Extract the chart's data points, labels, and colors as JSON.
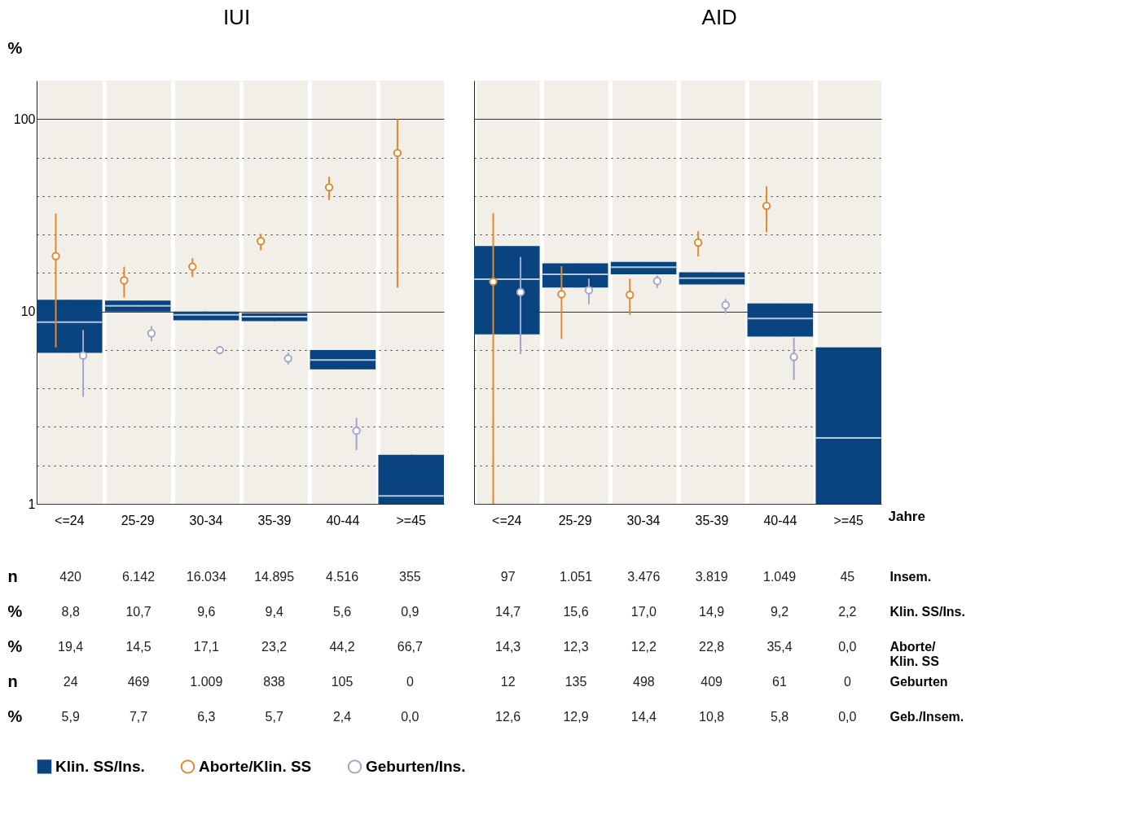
{
  "chart_data": [
    {
      "type": "box",
      "title": "IUI",
      "ylabel": "%",
      "categories": [
        "<=24",
        "25-29",
        "30-34",
        "35-39",
        "40-44",
        ">=45"
      ],
      "log": true,
      "grid": true,
      "legend": "bottom",
      "marker": "circle",
      "ylim": [
        1,
        158.5
      ],
      "yticks": [
        1,
        {
          "value": 1.585,
          "label": null
        },
        {
          "value": 2.512,
          "label": null
        },
        {
          "value": 3.981,
          "label": null
        },
        {
          "value": 6.31,
          "label": null
        },
        10,
        {
          "value": 15.85,
          "label": null
        },
        {
          "value": 25.12,
          "label": null
        },
        {
          "value": 39.81,
          "label": null
        },
        {
          "value": 63.1,
          "label": null
        },
        100
      ],
      "series": [
        {
          "name": "Klin. SS/Ins.",
          "color": "#0a4480",
          "boxes": [
            {
              "low": 6.1,
              "q1": 6.1,
              "median": 8.8,
              "q3": 11.5,
              "high": 11.5
            },
            {
              "low": 10.0,
              "q1": 10.0,
              "median": 10.7,
              "q3": 11.4,
              "high": 11.4
            },
            {
              "low": 9.0,
              "q1": 9.0,
              "median": 9.6,
              "q3": 10.0,
              "high": 10.0
            },
            {
              "low": 8.9,
              "q1": 8.9,
              "median": 9.4,
              "q3": 9.8,
              "high": 9.8
            },
            {
              "low": 5.0,
              "q1": 5.0,
              "median": 5.6,
              "q3": 6.3,
              "high": 6.3
            },
            {
              "low": 1,
              "q1": 1,
              "median": 1.1,
              "q3": 1.8,
              "high": 1.8
            }
          ]
        },
        {
          "name": "Aborte/Klin. SS",
          "type": "scatter",
          "color": "#e08a2e",
          "values": [
            19.4,
            14.5,
            17.1,
            23.2,
            44.2,
            66.7
          ],
          "errors": [
            [
              6.5,
              32.3
            ],
            [
              11.8,
              17.1
            ],
            [
              15.1,
              18.9
            ],
            [
              20.8,
              25.3
            ],
            [
              37.9,
              50.2
            ],
            [
              13.3,
              100
            ]
          ]
        },
        {
          "name": "Geburten/Ins.",
          "type": "scatter",
          "color": "#a3a6cc",
          "values": [
            5.9,
            7.7,
            6.3,
            5.7,
            2.4,
            null
          ],
          "errors": [
            [
              3.6,
              8.0
            ],
            [
              7.0,
              8.4
            ],
            [
              6.0,
              6.6
            ],
            [
              5.3,
              6.1
            ],
            [
              1.9,
              2.8
            ],
            null
          ]
        }
      ],
      "annotations": [
        "n",
        "%",
        "%",
        "n",
        "%",
        "420",
        "6.142",
        "16.034",
        "14.895",
        "4.516",
        "355",
        "8,8",
        "10,7",
        "9,6",
        "9,4",
        "5,6",
        "0,9",
        "19,4",
        "14,5",
        "17,1",
        "23,2",
        "44,2",
        "66,7",
        "24",
        "469",
        "1.009",
        "838",
        "105",
        "0",
        "5,9",
        "7,7",
        "6,3",
        "5,7",
        "2,4",
        "0,0"
      ]
    },
    {
      "type": "box",
      "title": "AID",
      "xlabel": "Jahre",
      "categories": [
        "<=24",
        "25-29",
        "30-34",
        "35-39",
        "40-44",
        ">=45"
      ],
      "log": true,
      "grid": true,
      "tick_labels": "x",
      "marker": "circle",
      "ylim": [
        1,
        158.5
      ],
      "yticks": [
        1,
        {
          "value": 1.585,
          "label": null
        },
        {
          "value": 2.512,
          "label": null
        },
        {
          "value": 3.981,
          "label": null
        },
        {
          "value": 6.31,
          "label": null
        },
        10,
        {
          "value": 15.85,
          "label": null
        },
        {
          "value": 25.12,
          "label": null
        },
        {
          "value": 39.81,
          "label": null
        },
        {
          "value": 63.1,
          "label": null
        },
        100
      ],
      "series": [
        {
          "color": "#0a4480",
          "boxes": [
            {
              "low": 7.6,
              "q1": 7.6,
              "median": 14.7,
              "q3": 21.9,
              "high": 21.9
            },
            {
              "low": 13.3,
              "q1": 13.3,
              "median": 15.6,
              "q3": 17.8,
              "high": 17.8
            },
            {
              "low": 15.6,
              "q1": 15.6,
              "median": 17.0,
              "q3": 18.1,
              "high": 18.1
            },
            {
              "low": 13.8,
              "q1": 13.8,
              "median": 14.9,
              "q3": 16.0,
              "high": 16.0
            },
            {
              "low": 7.4,
              "q1": 7.4,
              "median": 9.2,
              "q3": 11.0,
              "high": 11.0
            },
            {
              "low": 1,
              "q1": 1,
              "median": 2.2,
              "q3": 6.5,
              "high": 6.5
            }
          ]
        },
        {
          "type": "scatter",
          "color": "#e08a2e",
          "values": [
            14.3,
            12.3,
            12.2,
            22.8,
            35.4,
            null
          ],
          "errors": [
            [
              1,
              32.5
            ],
            [
              7.2,
              17.2
            ],
            [
              9.6,
              14.8
            ],
            [
              19.3,
              26.1
            ],
            [
              25.8,
              44.8
            ],
            null
          ]
        },
        {
          "type": "scatter",
          "color": "#a3a6cc",
          "values": [
            12.6,
            12.9,
            14.4,
            10.8,
            5.8,
            null
          ],
          "errors": [
            [
              6.0,
              19.2
            ],
            [
              10.9,
              14.8
            ],
            [
              13.2,
              15.4
            ],
            [
              9.8,
              11.6
            ],
            [
              4.4,
              7.3
            ],
            null
          ]
        }
      ],
      "annotations": [
        "Insem.",
        "Klin. SS/Ins.",
        "Aborte/ Klin. SS",
        "Geburten",
        "Geb./Insem.",
        "97",
        "1.051",
        "3.476",
        "3.819",
        "1.049",
        "45",
        "14,7",
        "15,6",
        "17,0",
        "14,9",
        "9,2",
        "2,2",
        "14,3",
        "12,3",
        "12,2",
        "22,8",
        "35,4",
        "0,0",
        "12",
        "135",
        "498",
        "409",
        "61",
        "0",
        "12,6",
        "12,9",
        "14,4",
        "10,8",
        "5,8",
        "0,0"
      ]
    }
  ]
}
